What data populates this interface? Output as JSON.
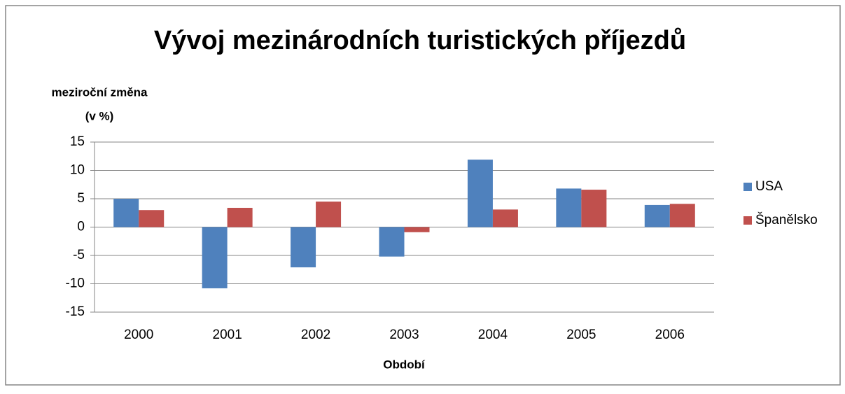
{
  "chart_data": {
    "type": "bar",
    "title": "Vývoj mezinárodních turistických příjezdů",
    "ylabel": [
      "meziroční změna",
      "(v %)"
    ],
    "xlabel": "Období",
    "categories": [
      "2000",
      "2001",
      "2002",
      "2003",
      "2004",
      "2005",
      "2006"
    ],
    "series": [
      {
        "name": "USA",
        "color": "#4f81bd",
        "values": [
          5.0,
          -10.8,
          -7.1,
          -5.2,
          11.9,
          6.8,
          3.9
        ]
      },
      {
        "name": "Španělsko",
        "color": "#c0504d",
        "values": [
          3.0,
          3.4,
          4.5,
          -0.9,
          3.1,
          6.6,
          4.1
        ]
      }
    ],
    "ylim": [
      -15,
      15
    ],
    "yticks": [
      -15,
      -10,
      -5,
      0,
      5,
      10,
      15
    ],
    "grid": true,
    "legend": "right"
  }
}
